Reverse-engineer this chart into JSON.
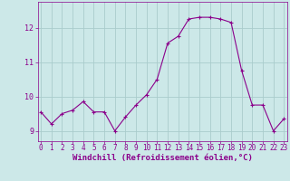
{
  "x": [
    0,
    1,
    2,
    3,
    4,
    5,
    6,
    7,
    8,
    9,
    10,
    11,
    12,
    13,
    14,
    15,
    16,
    17,
    18,
    19,
    20,
    21,
    22,
    23
  ],
  "y": [
    9.55,
    9.2,
    9.5,
    9.6,
    9.85,
    9.55,
    9.55,
    9.0,
    9.4,
    9.75,
    10.05,
    10.5,
    11.55,
    11.75,
    12.25,
    12.3,
    12.3,
    12.25,
    12.15,
    10.75,
    9.75,
    9.75,
    9.0,
    9.35
  ],
  "line_color": "#8b008b",
  "marker": "+",
  "marker_size": 3,
  "bg_color": "#cce8e8",
  "grid_color": "#aacccc",
  "xlabel": "Windchill (Refroidissement éolien,°C)",
  "xlabel_color": "#8b008b",
  "tick_color": "#8b008b",
  "ylim": [
    8.7,
    12.75
  ],
  "yticks": [
    9,
    10,
    11,
    12
  ],
  "xticks": [
    0,
    1,
    2,
    3,
    4,
    5,
    6,
    7,
    8,
    9,
    10,
    11,
    12,
    13,
    14,
    15,
    16,
    17,
    18,
    19,
    20,
    21,
    22,
    23
  ],
  "spine_color": "#8b008b",
  "tick_fontsize": 5.5,
  "xlabel_fontsize": 6.5
}
